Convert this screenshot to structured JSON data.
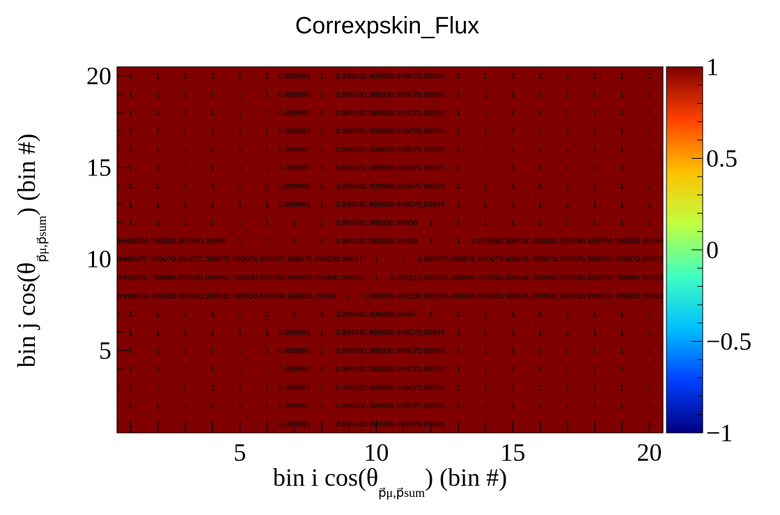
{
  "chart_data": {
    "type": "heatmap",
    "title": "Correxpskin_Flux",
    "xlabel": "bin i cos(θ) (bin #)",
    "xlabel_parts": {
      "pre": "bin i cos(θ",
      "sub": "p⃗μ,p⃗sum",
      "post": ") (bin #)"
    },
    "ylabel": "bin j cos(θ) (bin #)",
    "ylabel_parts": {
      "pre": "bin j cos(θ",
      "sub": "p⃗μ,p⃗sum",
      "post": ") (bin #)"
    },
    "x_bins": 20,
    "y_bins": 20,
    "xlim": [
      0.5,
      20.5
    ],
    "ylim": [
      0.5,
      20.5
    ],
    "x_ticks": [
      "5",
      "10",
      "15",
      "20"
    ],
    "y_ticks": [
      "5",
      "10",
      "15",
      "20"
    ],
    "zlim": [
      -1,
      1
    ],
    "z_ticks": [
      "1",
      "0.5",
      "0",
      "−0.5",
      "−1"
    ],
    "colormap": [
      "#000080",
      "#0040ff",
      "#00c0ff",
      "#40ffc0",
      "#c0ff40",
      "#ffc000",
      "#ff4000",
      "#800000"
    ],
    "cell_color": "#800000",
    "rows": [
      [
        "1",
        "1",
        "1",
        "1",
        "1",
        "1",
        "0.999999",
        "1",
        "0.99993",
        "0.99999",
        "0.99907",
        "0.99999",
        "1",
        "1",
        "1",
        "1",
        "1",
        "1",
        "1",
        "1"
      ],
      [
        "1",
        "1",
        "1",
        "1",
        "1",
        "1",
        "0.999999",
        "1",
        "0.99993",
        "0.99999",
        "0.99907",
        "0.99999",
        "1",
        "1",
        "1",
        "1",
        "1",
        "1",
        "1",
        "1"
      ],
      [
        "1",
        "1",
        "1",
        "1",
        "1",
        "1",
        "0.999999",
        "1",
        "0.99993",
        "0.99999",
        "0.99907",
        "0.99999",
        "1",
        "1",
        "1",
        "1",
        "1",
        "1",
        "1",
        "1"
      ],
      [
        "1",
        "1",
        "1",
        "1",
        "1",
        "1",
        "0.999999",
        "1",
        "0.99993",
        "0.99999",
        "0.99907",
        "0.99999",
        "1",
        "1",
        "1",
        "1",
        "1",
        "1",
        "1",
        "1"
      ],
      [
        "1",
        "1",
        "1",
        "1",
        "1",
        "1",
        "0.999999",
        "1",
        "0.99993",
        "0.99999",
        "0.99907",
        "0.99999",
        "1",
        "1",
        "1",
        "1",
        "1",
        "1",
        "1",
        "1"
      ],
      [
        "1",
        "1",
        "1",
        "1",
        "1",
        "1",
        "0.999999",
        "1",
        "0.99993",
        "0.99999",
        "0.99907",
        "0.99999",
        "1",
        "1",
        "1",
        "1",
        "1",
        "1",
        "1",
        "1"
      ],
      [
        "1",
        "1",
        "1",
        "1",
        "1",
        "1",
        "0.999999",
        "1",
        "0.99993",
        "0.99999",
        "0.99907",
        "0.99999",
        "1",
        "1",
        "1",
        "1",
        "1",
        "1",
        "1",
        "1"
      ],
      [
        "1",
        "1",
        "1",
        "1",
        "1",
        "1",
        "0.999999",
        "1",
        "0.99993",
        "0.99999",
        "0.99907",
        "0.99999",
        "1",
        "1",
        "1",
        "1",
        "1",
        "1",
        "1",
        "1"
      ],
      [
        "1",
        "1",
        "1",
        "1",
        "1",
        "1",
        "1",
        "1",
        "0.99993",
        "0.99999",
        "0.99908",
        "1",
        "1",
        "1",
        "1",
        "1",
        "1",
        "1",
        "1",
        "1"
      ],
      [
        "0.99999",
        "0.99999",
        "0.99999",
        "0.99999",
        "1",
        "1",
        "1",
        "1",
        "0.99993",
        "0.99999",
        "0.99909",
        "1",
        "1",
        "0.99999",
        "0.99999",
        "0.99999",
        "0.99999",
        "0.99999",
        "0.99999",
        "0.99999"
      ],
      [
        "0.99907",
        "0.99907",
        "0.99907",
        "0.99907",
        "0.99907",
        "0.99907",
        "0.99907",
        "0.99923",
        "0.99921",
        "1",
        "1",
        "0.99907",
        "0.99907",
        "0.99907",
        "0.99907",
        "0.99907",
        "0.99907",
        "0.99907",
        "0.99907",
        "0.99907"
      ],
      [
        "0.99999",
        "0.99999",
        "0.99999",
        "0.99999",
        "0.99999",
        "0.99999",
        "0.99999",
        "0.99999",
        "0.99999",
        "1",
        "0.99921",
        "0.99999",
        "0.99999",
        "0.99999",
        "0.99999",
        "0.99999",
        "0.99999",
        "0.99999",
        "0.99999",
        "0.99999"
      ],
      [
        "0.99993",
        "0.99993",
        "0.99993",
        "0.99993",
        "0.99993",
        "0.99993",
        "0.99993",
        "0.99993",
        "1",
        "0.99999",
        "0.99923",
        "0.99999",
        "0.99993",
        "0.99993",
        "0.99993",
        "0.99993",
        "0.99993",
        "0.99993",
        "0.99993",
        "0.99993"
      ],
      [
        "1",
        "1",
        "1",
        "1",
        "1",
        "1",
        "1",
        "1",
        "0.99999",
        "0.99999",
        "0.99907",
        "1",
        "1",
        "1",
        "1",
        "1",
        "1",
        "1",
        "1",
        "1"
      ],
      [
        "1",
        "1",
        "1",
        "1",
        "1",
        "1",
        "0.999999",
        "1",
        "0.99993",
        "0.99999",
        "0.99907",
        "0.99999",
        "1",
        "1",
        "1",
        "1",
        "1",
        "1",
        "1",
        "1"
      ],
      [
        "1",
        "1",
        "1",
        "1",
        "1",
        "1",
        "0.999999",
        "1",
        "0.99993",
        "0.99999",
        "0.99907",
        "0.99999",
        "1",
        "1",
        "1",
        "1",
        "1",
        "1",
        "1",
        "1"
      ],
      [
        "1",
        "1",
        "1",
        "1",
        "1",
        "1",
        "0.999999",
        "1",
        "0.99993",
        "0.99999",
        "0.99907",
        "0.99999",
        "1",
        "1",
        "1",
        "1",
        "1",
        "1",
        "1",
        "1"
      ],
      [
        "1",
        "1",
        "1",
        "1",
        "1",
        "1",
        "0.999999",
        "1",
        "0.99993",
        "0.99999",
        "0.99907",
        "0.99999",
        "1",
        "1",
        "1",
        "1",
        "1",
        "1",
        "1",
        "1"
      ],
      [
        "1",
        "1",
        "1",
        "1",
        "1",
        "1",
        "0.999999",
        "1",
        "0.99993",
        "0.99999",
        "0.99907",
        "0.99999",
        "1",
        "1",
        "1",
        "1",
        "1",
        "1",
        "1",
        "1"
      ],
      [
        "1",
        "1",
        "1",
        "1",
        "1",
        "1",
        "0.999999",
        "1",
        "0.99993",
        "0.99999",
        "0.99907",
        "0.99999",
        "1",
        "1",
        "1",
        "1",
        "1",
        "1",
        "1",
        "1"
      ]
    ]
  }
}
